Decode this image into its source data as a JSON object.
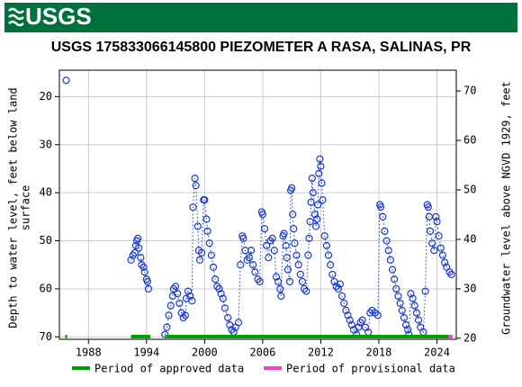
{
  "header": {
    "logo": "USGS"
  },
  "chart_data": {
    "type": "scatter",
    "title": "USGS 175833066145800 PIEZOMETER A RASA, SALINAS, PR",
    "ylabel": [
      "Depth to water level, feet below land",
      "surface"
    ],
    "y2label": "Groundwater level above NGVD 1929, feet",
    "color": "#1a3bd0",
    "y_inverted": true,
    "grid": true,
    "xlim": [
      1985,
      2026
    ],
    "xticks": [
      1988,
      1994,
      2000,
      2006,
      2012,
      2018,
      2024
    ],
    "ylim": [
      70.5,
      14.5
    ],
    "yticks": [
      20,
      30,
      40,
      50,
      60,
      70
    ],
    "y2lim": [
      19.8,
      74.2
    ],
    "y2ticks": [
      20,
      30,
      40,
      50,
      60,
      70
    ],
    "x": [
      1985.7,
      1990,
      1992.4,
      1992.6,
      1992.8,
      1992.9,
      1993.0,
      1993.1,
      1993.2,
      1993.4,
      1993.5,
      1993.7,
      1993.8,
      1994.0,
      1994.1,
      1994.2,
      1995,
      1995.9,
      1996.1,
      1996.3,
      1996.5,
      1996.7,
      1996.8,
      1997.0,
      1997.2,
      1997.4,
      1997.6,
      1997.8,
      1998.0,
      1998.1,
      1998.3,
      1998.5,
      1998.7,
      1998.8,
      1999.0,
      1999.1,
      1999.3,
      1999.4,
      1999.5,
      1999.7,
      1999.9,
      2000.0,
      2000.2,
      2000.3,
      2000.5,
      2000.7,
      2000.9,
      2001.1,
      2001.3,
      2001.5,
      2001.7,
      2001.9,
      2002.1,
      2002.4,
      2002.6,
      2002.8,
      2003.0,
      2003.2,
      2003.5,
      2003.7,
      2003.9,
      2004.0,
      2004.2,
      2004.4,
      2004.6,
      2004.8,
      2005.0,
      2005.2,
      2005.5,
      2005.7,
      2005.9,
      2006.0,
      2006.2,
      2006.4,
      2006.6,
      2006.8,
      2007.0,
      2007.2,
      2007.4,
      2007.6,
      2007.8,
      2007.9,
      2008.1,
      2008.2,
      2008.4,
      2008.5,
      2008.6,
      2008.8,
      2008.9,
      2009.0,
      2009.1,
      2009.2,
      2009.3,
      2009.5,
      2009.7,
      2009.9,
      2010.1,
      2010.3,
      2010.5,
      2010.7,
      2010.8,
      2010.9,
      2011.0,
      2011.1,
      2011.2,
      2011.4,
      2011.5,
      2011.6,
      2011.7,
      2011.8,
      2011.9,
      2012.0,
      2012.1,
      2012.2,
      2012.4,
      2012.6,
      2012.8,
      2013.0,
      2013.2,
      2013.4,
      2013.6,
      2013.8,
      2014.0,
      2014.2,
      2014.4,
      2014.6,
      2014.8,
      2015.0,
      2015.2,
      2015.4,
      2015.7,
      2015.9,
      2016.1,
      2016.3,
      2016.6,
      2016.9,
      2017.1,
      2017.3,
      2017.6,
      2017.9,
      2018.1,
      2018.2,
      2018.4,
      2018.6,
      2018.8,
      2019.0,
      2019.2,
      2019.4,
      2019.6,
      2019.8,
      2020.0,
      2020.2,
      2020.4,
      2020.6,
      2020.8,
      2021.0,
      2021.1,
      2021.3,
      2021.5,
      2021.7,
      2021.9,
      2022.1,
      2022.3,
      2022.6,
      2022.8,
      2023.0,
      2023.1,
      2023.2,
      2023.3,
      2023.5,
      2023.7,
      2023.9,
      2024.0,
      2024.2,
      2024.4,
      2024.6,
      2024.8,
      2025.0,
      2025.3,
      2025.5
    ],
    "values": [
      16.6,
      null,
      54,
      53,
      52.5,
      51,
      50,
      49.5,
      51.5,
      53.5,
      55,
      55.5,
      56.5,
      58,
      58.5,
      60,
      null,
      69.5,
      68,
      65.5,
      63.5,
      61.5,
      60,
      59.5,
      61,
      63,
      65,
      66,
      65.5,
      62,
      60.5,
      61.5,
      62.5,
      43,
      37,
      38.5,
      47,
      52,
      54,
      52.5,
      41.5,
      41.5,
      45.5,
      48,
      50.5,
      53,
      55.5,
      58,
      59.5,
      60,
      61,
      62,
      64,
      66,
      67.5,
      68.5,
      69,
      68,
      67,
      55,
      49,
      49.5,
      52,
      54,
      53.5,
      52,
      55,
      56.5,
      58,
      58.5,
      44,
      44.5,
      47.5,
      51,
      53.5,
      50,
      49.5,
      52,
      57.5,
      58.5,
      60,
      61.5,
      49,
      48.5,
      51,
      53.5,
      56,
      58.5,
      39.5,
      39,
      44.5,
      47.5,
      50.5,
      53,
      55,
      57,
      58.5,
      60,
      60.5,
      53,
      49.5,
      46,
      42,
      37,
      40,
      44.5,
      47,
      45.5,
      42.5,
      36,
      33,
      34.5,
      38,
      41.5,
      49,
      51,
      53,
      55,
      57,
      58.5,
      59.5,
      60,
      59,
      61.5,
      63,
      64.5,
      65.5,
      66.5,
      67.5,
      68.5,
      69.5,
      68,
      67,
      66.5,
      68,
      69,
      65,
      64.5,
      65,
      65.5,
      42.5,
      43,
      45,
      48,
      50,
      52,
      54,
      56,
      58,
      60,
      61.5,
      63,
      64.5,
      66,
      67.5,
      68.5,
      69.5,
      61,
      62,
      63.5,
      65,
      66.5,
      68,
      69,
      60.5,
      42.5,
      43,
      45,
      48,
      50.5,
      52,
      45,
      46,
      49,
      51.5,
      53,
      54.5,
      55.5,
      56.5,
      57
    ],
    "periods": [
      {
        "name": "Period of approved data",
        "color": "#00a000",
        "ranges": [
          [
            1985.6,
            1985.8
          ],
          [
            1992.4,
            1994.4
          ],
          [
            1995.9,
            2025.2
          ]
        ]
      },
      {
        "name": "Period of provisional data",
        "color": "#ee44cc",
        "ranges": [
          [
            2025.2,
            2025.6
          ]
        ]
      }
    ]
  }
}
